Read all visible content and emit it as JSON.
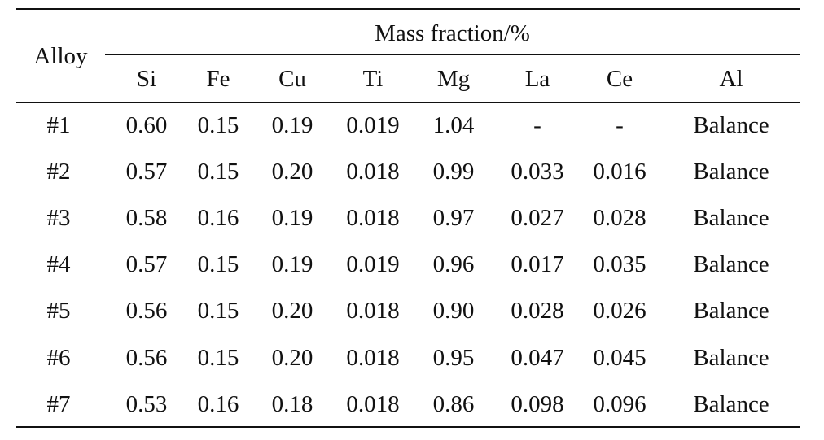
{
  "table": {
    "row_header": "Alloy",
    "group_header": "Mass fraction/%",
    "columns": [
      "Si",
      "Fe",
      "Cu",
      "Ti",
      "Mg",
      "La",
      "Ce",
      "Al"
    ],
    "rows": [
      {
        "alloy": "#1",
        "values": [
          "0.60",
          "0.15",
          "0.19",
          "0.019",
          "1.04",
          "-",
          "-",
          "Balance"
        ]
      },
      {
        "alloy": "#2",
        "values": [
          "0.57",
          "0.15",
          "0.20",
          "0.018",
          "0.99",
          "0.033",
          "0.016",
          "Balance"
        ]
      },
      {
        "alloy": "#3",
        "values": [
          "0.58",
          "0.16",
          "0.19",
          "0.018",
          "0.97",
          "0.027",
          "0.028",
          "Balance"
        ]
      },
      {
        "alloy": "#4",
        "values": [
          "0.57",
          "0.15",
          "0.19",
          "0.019",
          "0.96",
          "0.017",
          "0.035",
          "Balance"
        ]
      },
      {
        "alloy": "#5",
        "values": [
          "0.56",
          "0.15",
          "0.20",
          "0.018",
          "0.90",
          "0.028",
          "0.026",
          "Balance"
        ]
      },
      {
        "alloy": "#6",
        "values": [
          "0.56",
          "0.15",
          "0.20",
          "0.018",
          "0.95",
          "0.047",
          "0.045",
          "Balance"
        ]
      },
      {
        "alloy": "#7",
        "values": [
          "0.53",
          "0.16",
          "0.18",
          "0.018",
          "0.86",
          "0.098",
          "0.096",
          "Balance"
        ]
      }
    ]
  }
}
